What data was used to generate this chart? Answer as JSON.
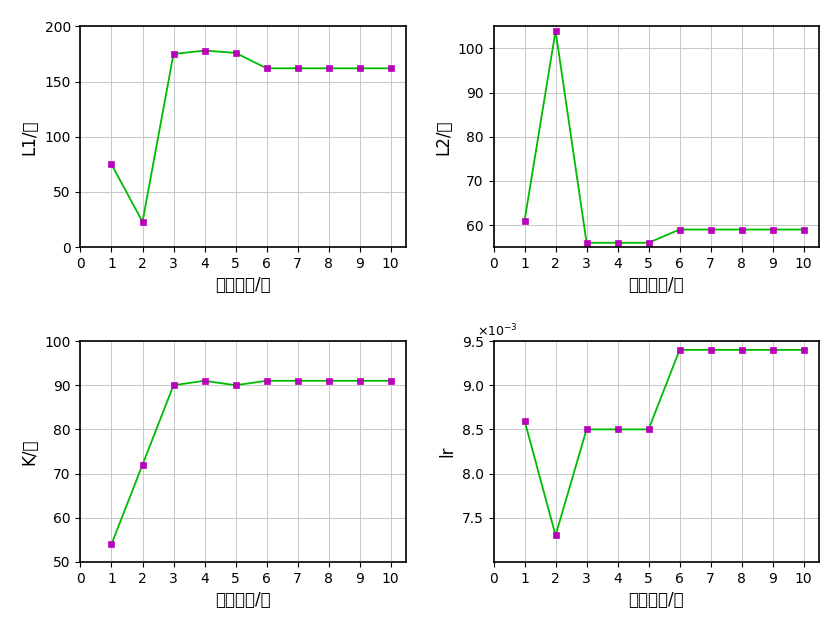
{
  "x": [
    1,
    2,
    3,
    4,
    5,
    6,
    7,
    8,
    9,
    10
  ],
  "L1": [
    75,
    23,
    175,
    178,
    176,
    162,
    162,
    162,
    162,
    162
  ],
  "L2": [
    61,
    104,
    56,
    56,
    56,
    59,
    59,
    59,
    59,
    59
  ],
  "K": [
    54,
    72,
    90,
    91,
    90,
    91,
    91,
    91,
    91,
    91
  ],
  "lr": [
    0.0086,
    0.0073,
    0.0085,
    0.0085,
    0.0085,
    0.0094,
    0.0094,
    0.0094,
    0.0094,
    0.0094
  ],
  "line_color": "#00BB00",
  "marker_color": "#BB00BB",
  "marker": "s",
  "linewidth": 1.3,
  "markersize": 5,
  "xlabel": "迭代次数/次",
  "ylabel_L1": "L1/个",
  "ylabel_L2": "L2/个",
  "ylabel_K": "K/次",
  "ylabel_lr": "lr",
  "L1_ylim": [
    0,
    200
  ],
  "L1_yticks": [
    0,
    50,
    100,
    150,
    200
  ],
  "L2_ylim": [
    55,
    105
  ],
  "L2_yticks": [
    60,
    70,
    80,
    90,
    100
  ],
  "K_ylim": [
    50,
    100
  ],
  "K_yticks": [
    50,
    60,
    70,
    80,
    90,
    100
  ],
  "lr_ylim": [
    0.007,
    0.0095
  ],
  "lr_yticks": [
    0.0075,
    0.008,
    0.0085,
    0.009,
    0.0095
  ],
  "xticks": [
    0,
    1,
    2,
    3,
    4,
    5,
    6,
    7,
    8,
    9,
    10
  ],
  "xlim": [
    0,
    10.5
  ],
  "bg_color": "#ffffff",
  "grid_color": "#c8c8c8",
  "label_fontsize": 12,
  "tick_fontsize": 10
}
